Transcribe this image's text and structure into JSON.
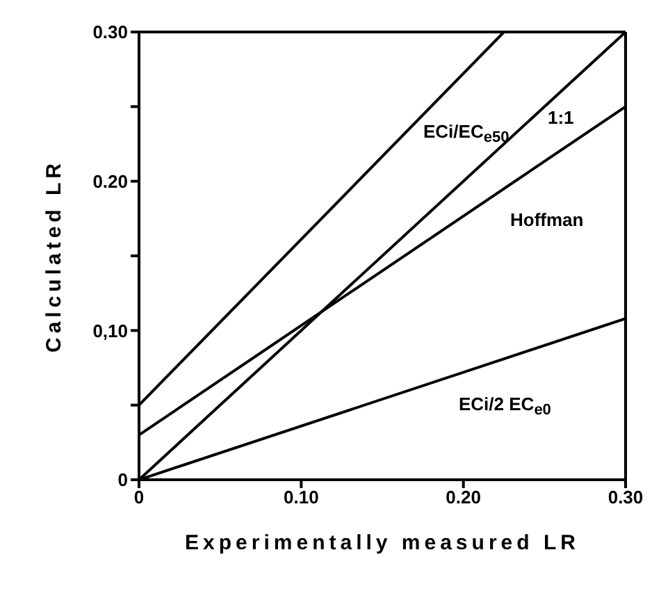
{
  "chart_data": {
    "type": "line",
    "xlabel": "Experimentally measured LR",
    "ylabel": "Calculated LR",
    "xlim": [
      0,
      0.3
    ],
    "ylim": [
      0,
      0.3
    ],
    "xticks": [
      {
        "value": 0,
        "label": "0"
      },
      {
        "value": 0.1,
        "label": "0.10"
      },
      {
        "value": 0.2,
        "label": "0.20"
      },
      {
        "value": 0.3,
        "label": "0.30"
      }
    ],
    "yticks": [
      {
        "value": 0,
        "label": "0"
      },
      {
        "value": 0.05,
        "label": null
      },
      {
        "value": 0.1,
        "label": "0,10"
      },
      {
        "value": 0.15,
        "label": null
      },
      {
        "value": 0.2,
        "label": "0.20"
      },
      {
        "value": 0.25,
        "label": null
      },
      {
        "value": 0.3,
        "label": "0.30"
      }
    ],
    "marker": "none",
    "line_style": "solid",
    "series": [
      {
        "name": "ECi/EC$_{e50}$",
        "color": "#000000",
        "x": [
          0,
          0.225
        ],
        "values": [
          0.05,
          0.3
        ]
      },
      {
        "name": "1:1",
        "color": "#000000",
        "x": [
          0,
          0.3
        ],
        "values": [
          0,
          0.3
        ]
      },
      {
        "name": "Hoffman",
        "color": "#000000",
        "x": [
          0,
          0.3
        ],
        "values": [
          0.03,
          0.25
        ]
      },
      {
        "name": "ECi/2 EC$_{e0}$",
        "color": "#000000",
        "x": [
          0,
          0.3
        ],
        "values": [
          0,
          0.108
        ]
      }
    ]
  }
}
